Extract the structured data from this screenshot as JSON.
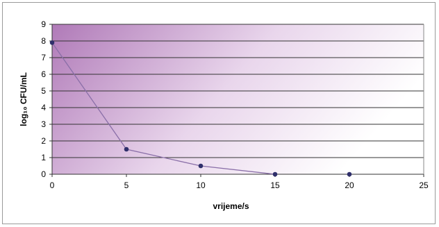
{
  "chart_data": {
    "type": "line",
    "x": [
      0,
      5,
      10,
      15,
      20
    ],
    "series": [
      {
        "values": [
          7.9,
          1.5,
          0.5,
          0.0,
          0.0
        ]
      }
    ],
    "line_segment_points": 4,
    "xlabel": "vrijeme/s",
    "ylabel": "log₁₀ CFU/mL",
    "xlim": [
      0,
      25
    ],
    "ylim": [
      0,
      9
    ],
    "x_ticks": [
      "0",
      "5",
      "10",
      "15",
      "20",
      "25"
    ],
    "y_ticks": [
      "0",
      "1",
      "2",
      "3",
      "4",
      "5",
      "6",
      "7",
      "8",
      "9"
    ],
    "grid": "horizontal",
    "colors": {
      "gradient_start": "#b07ab8",
      "gradient_end": "#ffffff",
      "line": "#8a6fa8",
      "marker": "#2f2f6b",
      "gridline": "#333333"
    }
  }
}
